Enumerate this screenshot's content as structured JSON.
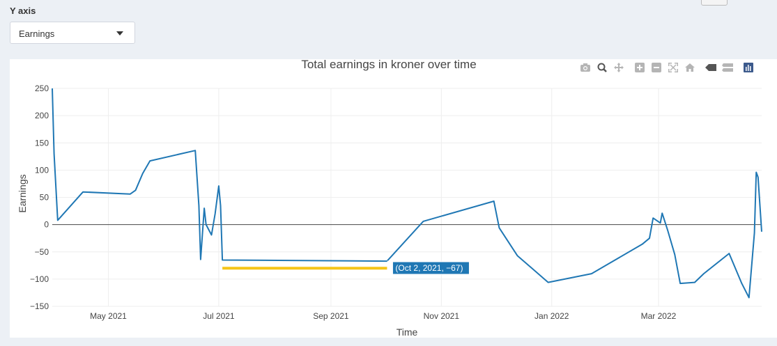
{
  "controls": {
    "yaxis_label": "Y axis",
    "select_value": "Earnings"
  },
  "modebar": {
    "icons": [
      "camera-icon",
      "zoom-icon",
      "pan-icon",
      "zoom-in-icon",
      "zoom-out-icon",
      "autoscale-icon",
      "home-icon",
      "spike-closest-icon",
      "spike-compare-icon",
      "plotly-logo-icon"
    ]
  },
  "chart_data": {
    "type": "line",
    "title": "Total earnings in kroner over time",
    "xlabel": "Time",
    "ylabel": "Earnings",
    "xlim": [
      "2021-03-31",
      "2022-04-27"
    ],
    "ylim": [
      -150,
      250
    ],
    "xticks": [
      {
        "date": "2021-05-01",
        "label": "May 2021"
      },
      {
        "date": "2021-07-01",
        "label": "Jul 2021"
      },
      {
        "date": "2021-09-01",
        "label": "Sep 2021"
      },
      {
        "date": "2021-11-01",
        "label": "Nov 2021"
      },
      {
        "date": "2022-01-01",
        "label": "Jan 2022"
      },
      {
        "date": "2022-03-01",
        "label": "Mar 2022"
      }
    ],
    "yticks": [
      -150,
      -100,
      -50,
      0,
      50,
      100,
      150,
      200,
      250
    ],
    "grid": true,
    "line_color": "#1f77b4",
    "series": [
      {
        "points": [
          [
            "2021-03-31",
            250
          ],
          [
            "2021-04-01",
            130
          ],
          [
            "2021-04-03",
            8
          ],
          [
            "2021-04-17",
            60
          ],
          [
            "2021-05-13",
            56
          ],
          [
            "2021-05-16",
            63
          ],
          [
            "2021-05-20",
            94
          ],
          [
            "2021-05-24",
            117
          ],
          [
            "2021-06-18",
            136
          ],
          [
            "2021-06-20",
            35
          ],
          [
            "2021-06-21",
            -64
          ],
          [
            "2021-06-23",
            30
          ],
          [
            "2021-06-24",
            0
          ],
          [
            "2021-06-27",
            -19
          ],
          [
            "2021-06-29",
            20
          ],
          [
            "2021-07-01",
            71
          ],
          [
            "2021-07-02",
            35
          ],
          [
            "2021-07-03",
            -65
          ],
          [
            "2021-10-02",
            -67
          ],
          [
            "2021-10-22",
            6
          ],
          [
            "2021-11-30",
            43
          ],
          [
            "2021-12-03",
            -6
          ],
          [
            "2021-12-13",
            -57
          ],
          [
            "2021-12-30",
            -106
          ],
          [
            "2022-01-23",
            -90
          ],
          [
            "2022-02-20",
            -36
          ],
          [
            "2022-02-24",
            -25
          ],
          [
            "2022-02-26",
            12
          ],
          [
            "2022-03-02",
            3
          ],
          [
            "2022-03-03",
            21
          ],
          [
            "2022-03-06",
            -10
          ],
          [
            "2022-03-10",
            -55
          ],
          [
            "2022-03-13",
            -108
          ],
          [
            "2022-03-21",
            -106
          ],
          [
            "2022-03-26",
            -90
          ],
          [
            "2022-04-09",
            -53
          ],
          [
            "2022-04-16",
            -108
          ],
          [
            "2022-04-20",
            -134
          ],
          [
            "2022-04-23",
            -15
          ],
          [
            "2022-04-24",
            96
          ],
          [
            "2022-04-25",
            87
          ],
          [
            "2022-04-27",
            -13
          ]
        ]
      }
    ],
    "hover": {
      "label": "(Oct 2, 2021, −67)",
      "date": "2021-10-02",
      "value": -67,
      "color": "#1f77b4"
    },
    "spike": {
      "from": "2021-07-03",
      "to": "2021-10-02",
      "value": -80,
      "color": "#f5c518"
    }
  }
}
